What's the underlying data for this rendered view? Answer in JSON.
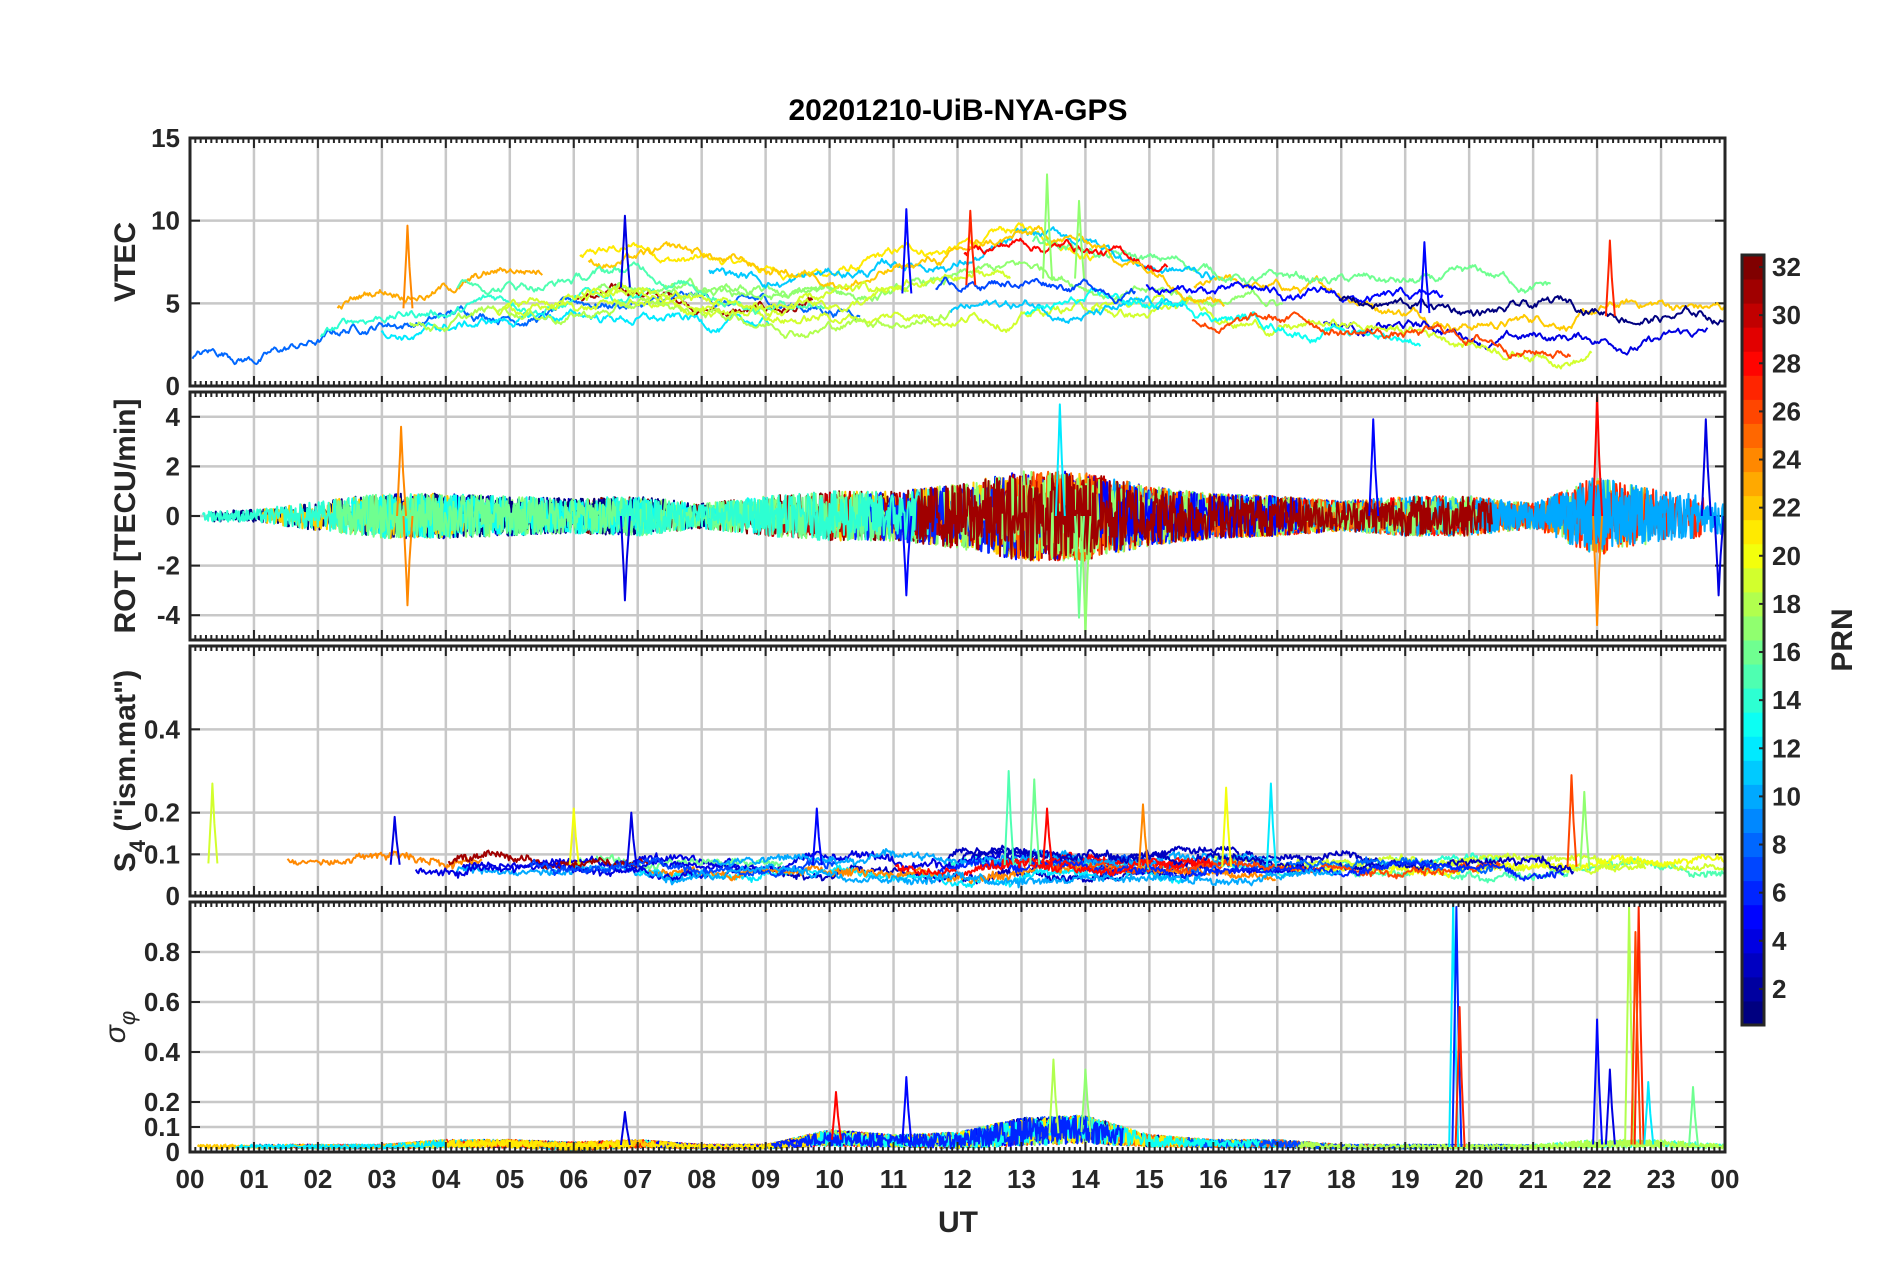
{
  "chart_data": {
    "type": "line",
    "title": "20201210-UiB-NYA-GPS",
    "xlabel": "UT",
    "x_ticks": [
      "00",
      "01",
      "02",
      "03",
      "04",
      "05",
      "06",
      "07",
      "08",
      "09",
      "10",
      "11",
      "12",
      "13",
      "14",
      "15",
      "16",
      "17",
      "18",
      "19",
      "20",
      "21",
      "22",
      "23",
      "00"
    ],
    "xlim": [
      0,
      24
    ],
    "grid": true,
    "colorbar": {
      "label": "PRN",
      "range": [
        1,
        32
      ],
      "ticks": [
        "2",
        "4",
        "6",
        "8",
        "10",
        "12",
        "14",
        "16",
        "18",
        "20",
        "22",
        "24",
        "26",
        "28",
        "30",
        "32"
      ],
      "colormap": "jet"
    },
    "panels": [
      {
        "ylabel": "VTEC",
        "ylim": [
          0,
          15
        ],
        "y_ticks": [
          "0",
          "5",
          "10",
          "15"
        ],
        "envelope": {
          "hours": [
            0,
            1,
            2,
            3,
            4,
            5,
            6,
            7,
            8,
            9,
            10,
            11,
            12,
            13,
            14,
            15,
            16,
            17,
            18,
            19,
            20,
            21,
            22,
            23,
            24
          ],
          "center": [
            2.0,
            2.2,
            3.0,
            4.5,
            5.0,
            5.5,
            5.8,
            6.0,
            5.5,
            5.0,
            5.2,
            5.5,
            6.0,
            6.5,
            6.5,
            5.8,
            5.5,
            5.0,
            4.8,
            4.5,
            4.2,
            4.0,
            4.2,
            4.3,
            4.0
          ],
          "spread": [
            0.8,
            1.2,
            1.8,
            2.2,
            2.5,
            2.5,
            2.8,
            3.0,
            3.0,
            2.5,
            2.5,
            2.8,
            3.0,
            3.5,
            3.2,
            2.5,
            2.2,
            2.0,
            2.0,
            2.0,
            2.2,
            2.2,
            2.5,
            2.5,
            2.0
          ]
        },
        "peak_marks": [
          {
            "hour": 3.4,
            "value": 9.7,
            "prn": 24
          },
          {
            "hour": 6.8,
            "value": 10.3,
            "prn": 4
          },
          {
            "hour": 11.2,
            "value": 10.7,
            "prn": 5
          },
          {
            "hour": 12.2,
            "value": 10.6,
            "prn": 27
          },
          {
            "hour": 13.4,
            "value": 12.8,
            "prn": 17
          },
          {
            "hour": 13.9,
            "value": 11.2,
            "prn": 17
          },
          {
            "hour": 22.2,
            "value": 8.8,
            "prn": 27
          },
          {
            "hour": 19.3,
            "value": 8.7,
            "prn": 5
          }
        ]
      },
      {
        "ylabel": "ROT [TECU/min]",
        "ylim": [
          -5,
          5
        ],
        "y_ticks": [
          "-4",
          "-2",
          "0",
          "2",
          "4"
        ],
        "envelope": {
          "hours": [
            0,
            1,
            2,
            3,
            4,
            5,
            6,
            7,
            8,
            9,
            10,
            11,
            12,
            13,
            14,
            15,
            16,
            17,
            18,
            19,
            20,
            21,
            22,
            23,
            24
          ],
          "center": [
            0,
            0,
            0,
            0,
            0,
            0,
            0,
            0,
            0,
            0,
            0,
            0,
            0,
            0,
            0,
            0,
            0,
            0,
            0,
            0,
            0,
            0,
            0,
            0,
            0
          ],
          "spread": [
            0.2,
            0.25,
            0.6,
            0.9,
            0.9,
            0.8,
            0.7,
            0.8,
            0.5,
            0.8,
            1.0,
            1.0,
            1.3,
            1.8,
            1.8,
            1.2,
            0.9,
            0.8,
            0.6,
            0.8,
            0.8,
            0.5,
            1.6,
            1.0,
            0.8
          ]
        },
        "peak_marks": [
          {
            "hour": 3.3,
            "value": 3.6,
            "prn": 24
          },
          {
            "hour": 3.4,
            "value": -3.6,
            "prn": 24
          },
          {
            "hour": 6.8,
            "value": -3.4,
            "prn": 4
          },
          {
            "hour": 11.2,
            "value": -3.2,
            "prn": 5
          },
          {
            "hour": 13.6,
            "value": 4.5,
            "prn": 12
          },
          {
            "hour": 13.9,
            "value": -4.1,
            "prn": 16
          },
          {
            "hour": 14.0,
            "value": -4.8,
            "prn": 17
          },
          {
            "hour": 22.0,
            "value": 4.9,
            "prn": 28
          },
          {
            "hour": 22.0,
            "value": -4.4,
            "prn": 24
          },
          {
            "hour": 18.5,
            "value": 3.9,
            "prn": 5
          },
          {
            "hour": 23.7,
            "value": 3.9,
            "prn": 4
          },
          {
            "hour": 23.9,
            "value": -3.2,
            "prn": 4
          }
        ]
      },
      {
        "ylabel": "S4 (\"ism.mat\")",
        "ylabel_main": "S",
        "ylabel_sub": "4",
        "ylabel_rest": " (\"ism.mat\")",
        "ylim": [
          0,
          0.6
        ],
        "y_ticks": [
          "0",
          "0.1",
          "0.2",
          "0.4"
        ],
        "y_tick_values": [
          0,
          0.1,
          0.2,
          0.4
        ],
        "envelope": {
          "hours": [
            0,
            1,
            2,
            3,
            4,
            5,
            6,
            7,
            8,
            9,
            10,
            11,
            12,
            13,
            14,
            15,
            16,
            17,
            18,
            19,
            20,
            21,
            22,
            23,
            24
          ],
          "center": [
            0.08,
            0.075,
            0.07,
            0.075,
            0.075,
            0.075,
            0.075,
            0.075,
            0.07,
            0.07,
            0.075,
            0.075,
            0.07,
            0.075,
            0.075,
            0.07,
            0.07,
            0.07,
            0.07,
            0.075,
            0.07,
            0.07,
            0.07,
            0.07,
            0.07
          ],
          "spread": [
            0.05,
            0.04,
            0.03,
            0.04,
            0.04,
            0.04,
            0.04,
            0.04,
            0.03,
            0.03,
            0.04,
            0.04,
            0.04,
            0.05,
            0.04,
            0.04,
            0.04,
            0.03,
            0.03,
            0.04,
            0.03,
            0.04,
            0.04,
            0.03,
            0.03
          ]
        },
        "peak_marks": [
          {
            "hour": 0.35,
            "value": 0.27,
            "prn": 19
          },
          {
            "hour": 3.2,
            "value": 0.19,
            "prn": 4
          },
          {
            "hour": 6.0,
            "value": 0.21,
            "prn": 20
          },
          {
            "hour": 6.9,
            "value": 0.2,
            "prn": 4
          },
          {
            "hour": 9.8,
            "value": 0.21,
            "prn": 5
          },
          {
            "hour": 12.8,
            "value": 0.3,
            "prn": 15
          },
          {
            "hour": 13.4,
            "value": 0.21,
            "prn": 28
          },
          {
            "hour": 13.2,
            "value": 0.28,
            "prn": 16
          },
          {
            "hour": 14.9,
            "value": 0.22,
            "prn": 24
          },
          {
            "hour": 16.2,
            "value": 0.26,
            "prn": 20
          },
          {
            "hour": 16.9,
            "value": 0.27,
            "prn": 12
          },
          {
            "hour": 21.6,
            "value": 0.29,
            "prn": 26
          },
          {
            "hour": 21.8,
            "value": 0.25,
            "prn": 17
          }
        ]
      },
      {
        "ylabel": "σφ",
        "ylabel_main": "σ",
        "ylabel_sub": "φ",
        "ylim": [
          0,
          1
        ],
        "y_ticks": [
          "0",
          "0.1",
          "0.2",
          "0.4",
          "0.6",
          "0.8"
        ],
        "y_tick_values": [
          0,
          0.1,
          0.2,
          0.4,
          0.6,
          0.8
        ],
        "envelope": {
          "hours": [
            0,
            1,
            2,
            3,
            4,
            5,
            6,
            7,
            8,
            9,
            10,
            11,
            12,
            13,
            14,
            15,
            16,
            17,
            18,
            19,
            20,
            21,
            22,
            23,
            24
          ],
          "center": [
            0.02,
            0.02,
            0.02,
            0.02,
            0.03,
            0.03,
            0.02,
            0.03,
            0.02,
            0.02,
            0.05,
            0.04,
            0.04,
            0.07,
            0.08,
            0.04,
            0.03,
            0.03,
            0.02,
            0.02,
            0.02,
            0.02,
            0.03,
            0.03,
            0.02
          ],
          "spread": [
            0.01,
            0.01,
            0.01,
            0.01,
            0.02,
            0.02,
            0.02,
            0.02,
            0.01,
            0.01,
            0.04,
            0.03,
            0.04,
            0.07,
            0.07,
            0.03,
            0.02,
            0.02,
            0.01,
            0.01,
            0.01,
            0.01,
            0.02,
            0.02,
            0.01
          ]
        },
        "peak_marks": [
          {
            "hour": 6.8,
            "value": 0.16,
            "prn": 4
          },
          {
            "hour": 10.1,
            "value": 0.24,
            "prn": 28
          },
          {
            "hour": 11.2,
            "value": 0.3,
            "prn": 5
          },
          {
            "hour": 13.5,
            "value": 0.37,
            "prn": 18
          },
          {
            "hour": 14.0,
            "value": 0.33,
            "prn": 17
          },
          {
            "hour": 19.75,
            "value": 1.0,
            "prn": 12
          },
          {
            "hour": 19.8,
            "value": 0.98,
            "prn": 6
          },
          {
            "hour": 19.85,
            "value": 0.58,
            "prn": 27
          },
          {
            "hour": 22.0,
            "value": 0.53,
            "prn": 5
          },
          {
            "hour": 22.2,
            "value": 0.33,
            "prn": 4
          },
          {
            "hour": 22.5,
            "value": 0.98,
            "prn": 18
          },
          {
            "hour": 22.65,
            "value": 0.98,
            "prn": 27
          },
          {
            "hour": 22.6,
            "value": 0.88,
            "prn": 26
          },
          {
            "hour": 22.8,
            "value": 0.28,
            "prn": 12
          },
          {
            "hour": 23.5,
            "value": 0.26,
            "prn": 16
          }
        ]
      }
    ]
  }
}
